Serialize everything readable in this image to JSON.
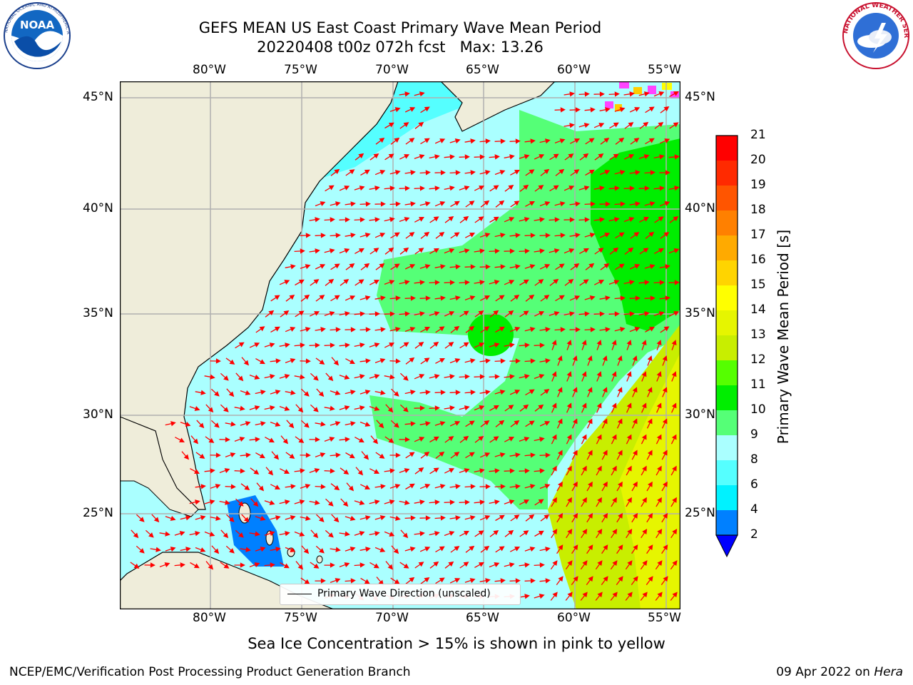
{
  "title": {
    "line1": "GEFS MEAN US East Coast Primary Wave Mean Period",
    "line2": "20220408 t00z 072h fcst   Max: 13.26"
  },
  "logos": {
    "left": {
      "name": "NOAA",
      "ring_text": "NATIONAL OCEANIC AND ATMOSPHERIC ADMINISTRATION · U.S. DEPARTMENT OF COMMERCE"
    },
    "right": {
      "name": "NATIONAL WEATHER SERVICE"
    }
  },
  "map": {
    "lon_labels": [
      "80°W",
      "75°W",
      "70°W",
      "65°W",
      "60°W",
      "55°W"
    ],
    "lat_labels": [
      "45°N",
      "40°N",
      "35°N",
      "30°N",
      "25°N"
    ],
    "land_color": "#efedda",
    "grid_color": "#b0b0b0",
    "arrow_color": "#ff0000",
    "legend": {
      "label": "Primary Wave Direction (unscaled)"
    }
  },
  "colorbar": {
    "title": "Primary Wave Mean Period [s]",
    "ticks": [
      "21",
      "20",
      "19",
      "18",
      "17",
      "16",
      "15",
      "14",
      "13",
      "12",
      "11",
      "10",
      "9",
      "8",
      "6",
      "4",
      "2"
    ],
    "colors": [
      "#ff0000",
      "#ff2a00",
      "#ff5500",
      "#ff8000",
      "#ffaa00",
      "#ffd400",
      "#ffff00",
      "#e6f500",
      "#c8ee00",
      "#55ff00",
      "#00ee00",
      "#55ff77",
      "#aaffff",
      "#55ffff",
      "#00f2ff",
      "#0080ff"
    ],
    "extend_color": "#0000ff"
  },
  "footer": {
    "note": "Sea Ice Concentration > 15% is shown in pink to yellow",
    "credit": "NCEP/EMC/Verification Post Processing Product Generation Branch",
    "date": "09 Apr 2022 on",
    "machine": "Hera"
  }
}
